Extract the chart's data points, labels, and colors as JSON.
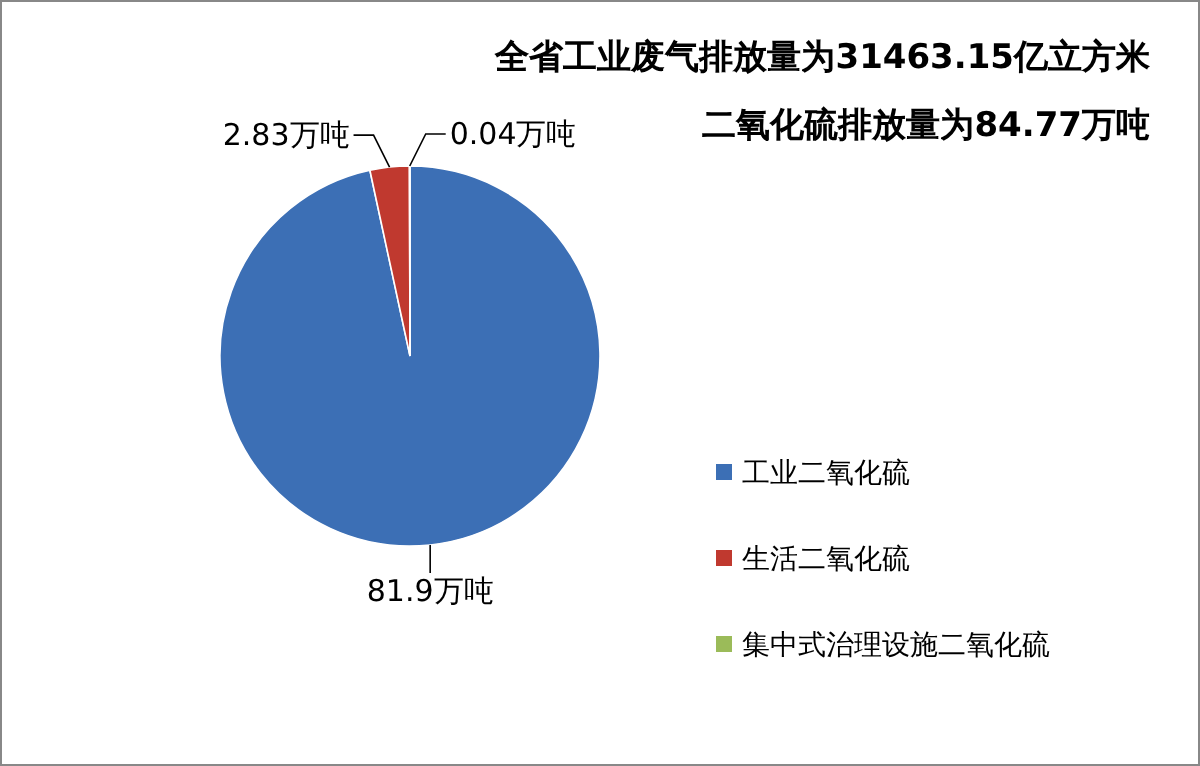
{
  "chart_data": {
    "type": "pie",
    "title": "全省工业废气排放量为31463.15亿立方米",
    "subtitle": "二氧化硫排放量为84.77万吨",
    "categories": [
      "工业二氧化硫",
      "生活二氧化硫",
      "集中式治理设施二氧化硫"
    ],
    "values": [
      81.9,
      2.83,
      0.04
    ],
    "colors": [
      "#3c6fb5",
      "#c0392f",
      "#9bbb59"
    ],
    "value_labels": [
      "81.9万吨",
      "2.83万吨",
      "0.04万吨"
    ],
    "legend": "right"
  }
}
